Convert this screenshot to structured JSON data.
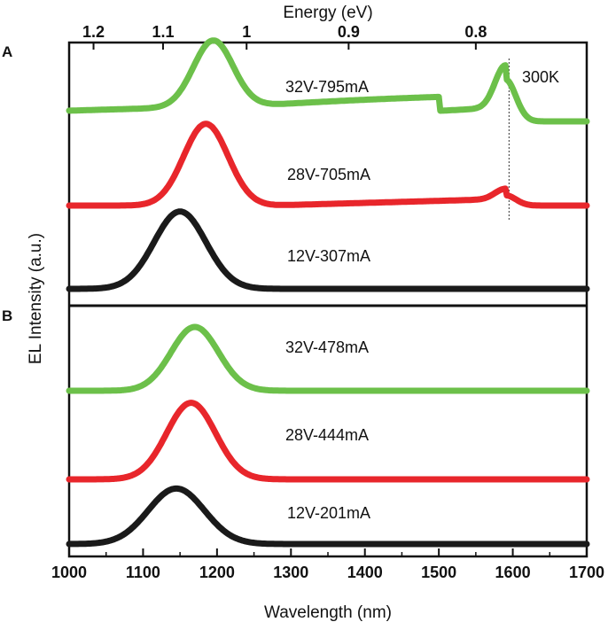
{
  "chart_data": {
    "type": "line",
    "title": "",
    "xlabel": "Wavelength (nm)",
    "ylabel": "EL Intensity (a.u.)",
    "top_axis_label": "Energy (eV)",
    "xlim": [
      1000,
      1700
    ],
    "x_ticks": [
      1000,
      1100,
      1200,
      1300,
      1400,
      1500,
      1600,
      1700
    ],
    "x_tick_labels": [
      "1000",
      "1100",
      "1200",
      "1300",
      "1400",
      "1500",
      "1600",
      "1700"
    ],
    "energy_ticks": [
      {
        "label": "1.2",
        "wavelength_nm": 1033
      },
      {
        "label": "1.1",
        "wavelength_nm": 1127
      },
      {
        "label": "1",
        "wavelength_nm": 1240
      },
      {
        "label": "0.9",
        "wavelength_nm": 1378
      },
      {
        "label": "0.8",
        "wavelength_nm": 1550
      }
    ],
    "panels": [
      {
        "letter": "A",
        "annotation": "300K",
        "reference_line_nm": 1595,
        "traces": [
          {
            "name": "32V-795mA",
            "color": "#6cc04a",
            "baseline": 0.0,
            "gaussians": [
              {
                "amp": 0.57,
                "center": 1195,
                "sigma": 27
              },
              {
                "amp": 0.13,
                "center": 1335,
                "sigma": 400,
                "rightEdge": 1500
              },
              {
                "amp": 0.36,
                "center": 1590,
                "sigma": 14
              }
            ],
            "ramp": {
              "start": 1230,
              "end": 1590,
              "amp": 0.12
            },
            "cutoff": {
              "after": 1595,
              "width": 12
            }
          },
          {
            "name": "28V-705mA",
            "color": "#e8262b",
            "baseline": 0.0,
            "gaussians": [
              {
                "amp": 0.87,
                "center": 1185,
                "sigma": 30
              },
              {
                "amp": 0.11,
                "center": 1590,
                "sigma": 14
              }
            ],
            "ramp": {
              "start": 1270,
              "end": 1590,
              "amp": 0.07
            },
            "cutoff": {
              "after": 1595,
              "width": 12
            }
          },
          {
            "name": "12V-307mA",
            "color": "#1a1a1a",
            "baseline": 0.0,
            "gaussians": [
              {
                "amp": 0.9,
                "center": 1150,
                "sigma": 35
              }
            ]
          }
        ]
      },
      {
        "letter": "B",
        "annotation": "",
        "traces": [
          {
            "name": "32V-478mA",
            "color": "#6cc04a",
            "baseline": 0.0,
            "gaussians": [
              {
                "amp": 0.8,
                "center": 1170,
                "sigma": 32
              }
            ]
          },
          {
            "name": "28V-444mA",
            "color": "#e8262b",
            "baseline": 0.0,
            "gaussians": [
              {
                "amp": 0.9,
                "center": 1165,
                "sigma": 33
              }
            ]
          },
          {
            "name": "12V-201mA",
            "color": "#1a1a1a",
            "baseline": 0.0,
            "gaussians": [
              {
                "amp": 0.62,
                "center": 1145,
                "sigma": 38
              }
            ]
          }
        ]
      }
    ]
  }
}
